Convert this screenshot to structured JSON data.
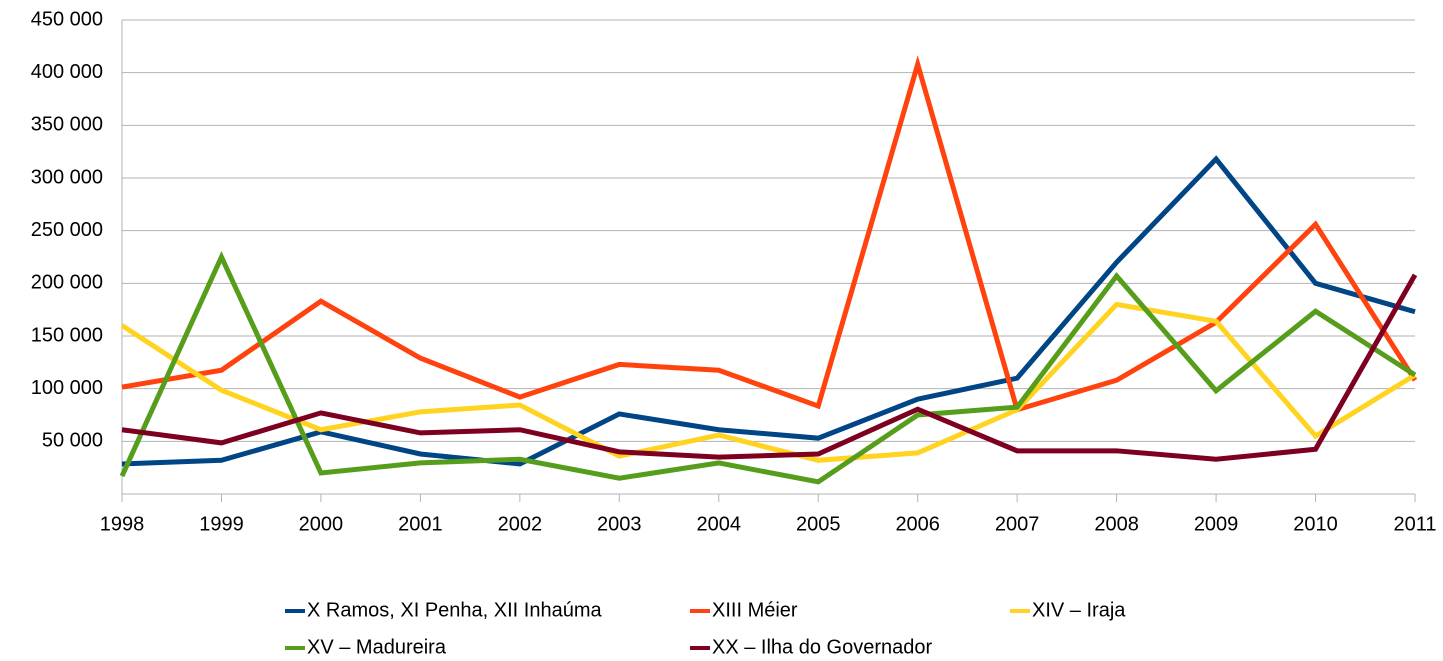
{
  "chart_data": {
    "type": "line",
    "x": [
      1998,
      1999,
      2000,
      2001,
      2002,
      2003,
      2004,
      2005,
      2006,
      2007,
      2008,
      2009,
      2010,
      2011
    ],
    "xlim": [
      1998,
      2011
    ],
    "xticks": [
      1998,
      1999,
      2000,
      2001,
      2002,
      2003,
      2004,
      2005,
      2006,
      2007,
      2008,
      2009,
      2010,
      2011
    ],
    "ylim": [
      0,
      450000
    ],
    "yticks": [
      {
        "value": 50000,
        "label": "50 000"
      },
      {
        "value": 100000,
        "label": "100 000"
      },
      {
        "value": 150000,
        "label": "150 000"
      },
      {
        "value": 200000,
        "label": "200 000"
      },
      {
        "value": 250000,
        "label": "250 000"
      },
      {
        "value": 300000,
        "label": "300 000"
      },
      {
        "value": 350000,
        "label": "350 000"
      },
      {
        "value": 400000,
        "label": "400 000"
      },
      {
        "value": 450000,
        "label": "450 000"
      }
    ],
    "grid": true,
    "legend": "bottom",
    "series": [
      {
        "name": "X Ramos, XI Penha, XII Inhaúma",
        "color": "#004586",
        "values": [
          28500,
          32000,
          59000,
          38000,
          28500,
          76000,
          61000,
          53000,
          90000,
          110000,
          220000,
          318000,
          200000,
          173000
        ]
      },
      {
        "name": "XIII Méier",
        "color": "#ff420e",
        "values": [
          101500,
          117500,
          183000,
          129000,
          92000,
          123000,
          117500,
          83500,
          408000,
          80000,
          108000,
          163000,
          256000,
          108000
        ]
      },
      {
        "name": "XIV – Iraja",
        "color": "#ffd320",
        "values": [
          160000,
          98500,
          61000,
          78000,
          84500,
          36000,
          56000,
          32000,
          39000,
          80000,
          180000,
          164000,
          55000,
          113000
        ]
      },
      {
        "name": "XV – Madureira",
        "color": "#579d1c",
        "values": [
          17000,
          225000,
          20000,
          29500,
          33000,
          15000,
          29500,
          11500,
          75000,
          82500,
          207000,
          98000,
          173500,
          113000
        ]
      },
      {
        "name": "XX – Ilha do Governador",
        "color": "#7e0021",
        "values": [
          61000,
          48500,
          77000,
          58000,
          61000,
          40000,
          35000,
          38000,
          80500,
          41000,
          41000,
          33000,
          42500,
          208000
        ]
      }
    ]
  }
}
